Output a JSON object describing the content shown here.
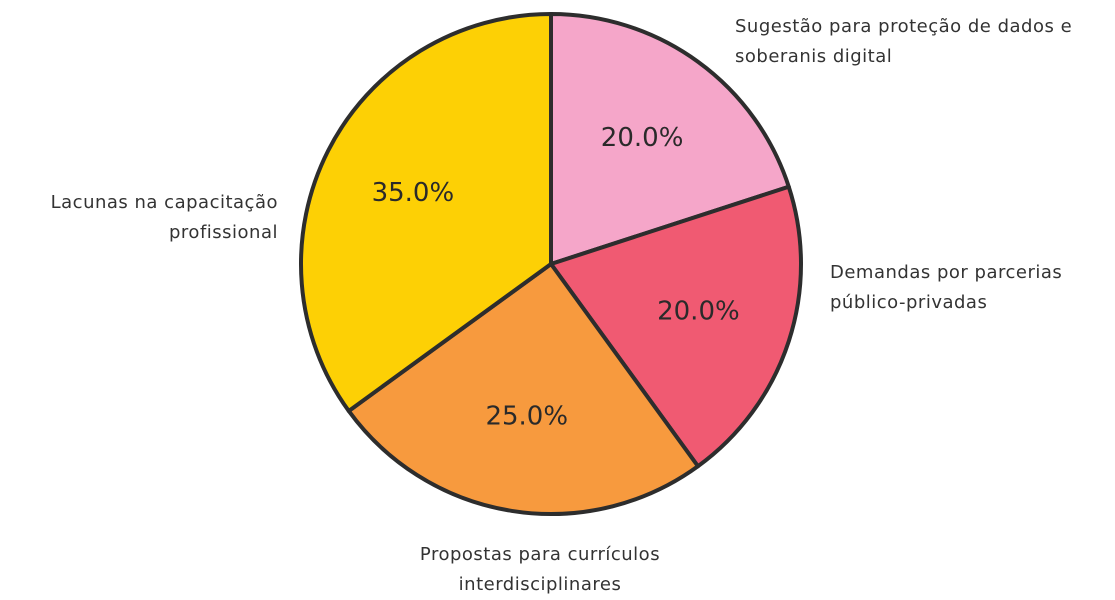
{
  "chart_data": {
    "type": "pie",
    "categories": [
      "Sugestão para proteção de dados e soberanis digital",
      "Demandas por parcerias público-privadas",
      "Propostas para currículos interdisciplinares",
      "Lacunas na capacitação profissional"
    ],
    "values": [
      20,
      20,
      25,
      35
    ],
    "value_labels": [
      "20.0%",
      "20.0%",
      "25.0%",
      "35.0%"
    ],
    "colors": [
      "#f5a6c9",
      "#f05a72",
      "#f79a3e",
      "#fdd005"
    ]
  }
}
